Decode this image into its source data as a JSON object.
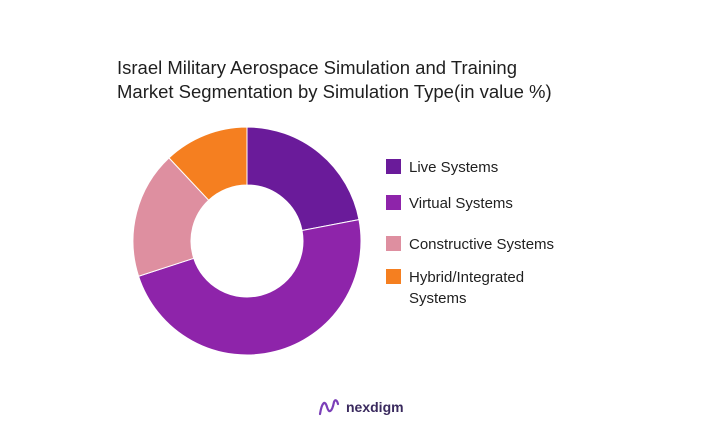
{
  "chart_data": {
    "type": "pie",
    "title": "Israel Military Aerospace Simulation and Training",
    "subtitle": "Market Segmentation by Simulation Type(in value %)",
    "categories": [
      "Live Systems",
      "Virtual Systems",
      "Constructive Systems",
      "Hybrid/Integrated Systems"
    ],
    "values": [
      22,
      48,
      18,
      12
    ],
    "colors": [
      "#6a1b9a",
      "#8e24aa",
      "#de8fa0",
      "#f57f20"
    ],
    "legend": "right",
    "donut": true
  },
  "brand": {
    "name": "nexdigm",
    "icon": "nexdigm-logo-icon",
    "color": "#7b3fb8"
  }
}
